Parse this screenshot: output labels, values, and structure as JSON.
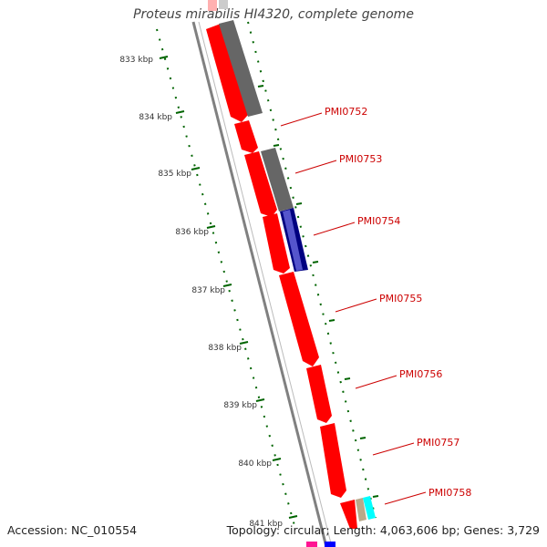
{
  "title": "Proteus mirabilis HI4320, complete genome",
  "footer": {
    "accession": "Accession: NC_010554",
    "summary": "Topology: circular; Length: 4,063,606 bp; Genes: 3,729"
  },
  "ruler": {
    "ticks": [
      "833 kbp",
      "834 kbp",
      "835 kbp",
      "836 kbp",
      "837 kbp",
      "838 kbp",
      "839 kbp",
      "840 kbp",
      "841 kbp"
    ]
  },
  "genes": {
    "labels": [
      "PMI0752",
      "PMI0753",
      "PMI0754",
      "PMI0755",
      "PMI0756",
      "PMI0757",
      "PMI0758"
    ]
  },
  "colors": {
    "cds": "#ff0000",
    "grey_feature": "#666666",
    "blue_feature": "#000080",
    "cyan_feature": "#00ffff",
    "tan_feature": "#b8a98a",
    "backbone": "#808080",
    "tick_green": "#006400",
    "label_red": "#cc0000"
  }
}
